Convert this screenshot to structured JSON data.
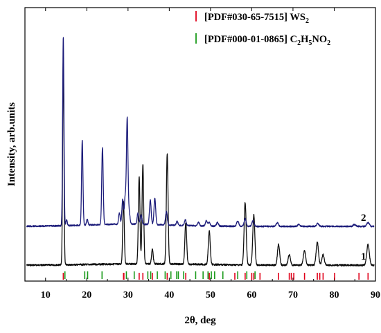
{
  "chart_data": {
    "type": "line",
    "title": "",
    "xlabel": "2θ, deg",
    "ylabel": "Intensity, arb.units",
    "xlim": [
      5,
      90
    ],
    "xticks": [
      "10",
      "20",
      "30",
      "40",
      "50",
      "60",
      "70",
      "80",
      "90"
    ],
    "yticks_shown": false,
    "legend": {
      "placement": "top-right",
      "entries": [
        {
          "marker": "|",
          "text": "[PDF#030-65-7515] WS",
          "sub": "2",
          "color": "#e0001a"
        },
        {
          "marker": "|",
          "text": "[PDF#000-01-0865] C",
          "formula_parts": [
            "2",
            "H",
            "5",
            "NO",
            "2"
          ],
          "color": "#1a9a1a"
        }
      ]
    },
    "series": [
      {
        "name": "1",
        "color": "#111111",
        "peaks": [
          {
            "x": 14.3,
            "h": 1.0
          },
          {
            "x": 28.9,
            "h": 0.3
          },
          {
            "x": 32.7,
            "h": 0.42
          },
          {
            "x": 33.6,
            "h": 0.48
          },
          {
            "x": 35.9,
            "h": 0.07
          },
          {
            "x": 39.5,
            "h": 0.53
          },
          {
            "x": 44.0,
            "h": 0.2
          },
          {
            "x": 49.7,
            "h": 0.16
          },
          {
            "x": 58.4,
            "h": 0.3
          },
          {
            "x": 60.5,
            "h": 0.24
          },
          {
            "x": 66.5,
            "h": 0.1
          },
          {
            "x": 69.1,
            "h": 0.05
          },
          {
            "x": 72.8,
            "h": 0.07
          },
          {
            "x": 75.9,
            "h": 0.11
          },
          {
            "x": 77.3,
            "h": 0.05
          },
          {
            "x": 88.2,
            "h": 0.1
          }
        ]
      },
      {
        "name": "2",
        "color": "#1c1c7a",
        "peaks": [
          {
            "x": 14.3,
            "h": 1.0
          },
          {
            "x": 15.1,
            "h": 0.03
          },
          {
            "x": 18.9,
            "h": 0.45
          },
          {
            "x": 20.1,
            "h": 0.03
          },
          {
            "x": 23.8,
            "h": 0.41
          },
          {
            "x": 27.9,
            "h": 0.06
          },
          {
            "x": 28.7,
            "h": 0.13
          },
          {
            "x": 29.3,
            "h": 0.14
          },
          {
            "x": 29.8,
            "h": 0.56
          },
          {
            "x": 30.3,
            "h": 0.06
          },
          {
            "x": 32.4,
            "h": 0.06
          },
          {
            "x": 33.2,
            "h": 0.05
          },
          {
            "x": 35.4,
            "h": 0.13
          },
          {
            "x": 36.5,
            "h": 0.14
          },
          {
            "x": 39.3,
            "h": 0.07
          },
          {
            "x": 41.9,
            "h": 0.02
          },
          {
            "x": 43.9,
            "h": 0.03
          },
          {
            "x": 47.1,
            "h": 0.02
          },
          {
            "x": 49.0,
            "h": 0.03
          },
          {
            "x": 49.7,
            "h": 0.02
          },
          {
            "x": 51.7,
            "h": 0.02
          },
          {
            "x": 56.6,
            "h": 0.03
          },
          {
            "x": 58.4,
            "h": 0.04
          },
          {
            "x": 60.3,
            "h": 0.03
          },
          {
            "x": 66.2,
            "h": 0.02
          },
          {
            "x": 71.4,
            "h": 0.01
          },
          {
            "x": 76.0,
            "h": 0.015
          },
          {
            "x": 84.9,
            "h": 0.01
          },
          {
            "x": 88.2,
            "h": 0.02
          }
        ]
      }
    ],
    "reference_lines": {
      "WS2": {
        "color": "#e0001a",
        "x": [
          14.3,
          28.9,
          29.0,
          32.7,
          33.6,
          35.9,
          39.5,
          44.0,
          49.7,
          55.9,
          58.4,
          60.0,
          60.5,
          62.0,
          66.5,
          69.1,
          69.6,
          70.2,
          72.8,
          75.9,
          76.5,
          77.3,
          80.1,
          86.0,
          88.2
        ]
      },
      "C2H5NO2": {
        "color": "#1a9a1a",
        "x": [
          14.7,
          19.5,
          20.2,
          23.7,
          29.6,
          31.5,
          34.8,
          35.5,
          37.1,
          39.0,
          40.4,
          41.8,
          42.2,
          43.5,
          46.4,
          48.2,
          49.4,
          50.2,
          51.0,
          53.0,
          56.6,
          58.8,
          60.8
        ]
      }
    },
    "annotations": [
      "1",
      "2"
    ]
  }
}
